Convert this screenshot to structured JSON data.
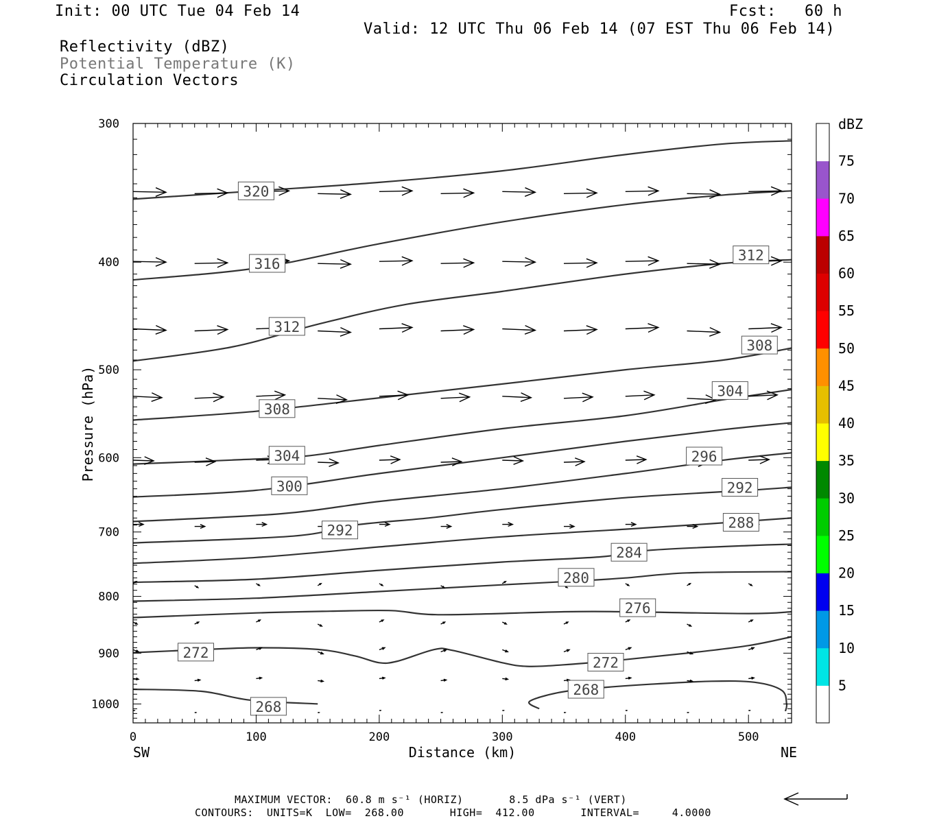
{
  "header": {
    "init": "Init: 00 UTC Tue 04 Feb 14",
    "fcst": "Fcst:   60 h",
    "valid": "Valid: 12 UTC Thu 06 Feb 14 (07 EST Thu 06 Feb 14)",
    "field_1": "Reflectivity (dBZ)",
    "field_2": "Potential Temperature (K)",
    "field_3": "Circulation Vectors"
  },
  "footer": {
    "max_vector": "MAXIMUM VECTOR:  60.8 m s⁻¹ (HORIZ)       8.5 dPa s⁻¹ (VERT)",
    "contours": "CONTOURS:  UNITS=K  LOW=  268.00       HIGH=  412.00       INTERVAL=     4.0000"
  },
  "chart_data": {
    "type": "cross-section",
    "xlabel": "Distance (km)",
    "ylabel": "Pressure (hPa)",
    "x_range": [
      0,
      535
    ],
    "y_range": [
      1040,
      300
    ],
    "y_log": true,
    "x_ticks": [
      0,
      100,
      200,
      300,
      400,
      500
    ],
    "y_ticks": [
      300,
      400,
      500,
      600,
      700,
      800,
      900,
      1000
    ],
    "x_endpoints": {
      "left": "SW",
      "right": "NE"
    },
    "colorbar": {
      "title": "dBZ",
      "levels": [
        5,
        10,
        15,
        20,
        25,
        30,
        35,
        40,
        45,
        50,
        55,
        60,
        65,
        70,
        75
      ],
      "colors": [
        "#00e5e5",
        "#0099e6",
        "#0000f0",
        "#00ff00",
        "#00cc00",
        "#008800",
        "#ffff00",
        "#e6bf00",
        "#ff9000",
        "#ff0000",
        "#dd0000",
        "#bb0000",
        "#ff00ff",
        "#9955cc",
        "#ffffff"
      ]
    },
    "contour_color": "#333333",
    "isentropes": [
      {
        "label": "268",
        "points": [
          [
            0,
            970
          ],
          [
            55,
            974
          ],
          [
            95,
            992
          ],
          [
            150,
            1000
          ]
        ]
      },
      {
        "label": "268",
        "points": [
          [
            330,
            1010
          ],
          [
            322,
            995
          ],
          [
            345,
            977
          ],
          [
            375,
            968
          ],
          [
            420,
            960
          ],
          [
            470,
            954
          ],
          [
            505,
            956
          ],
          [
            527,
            972
          ],
          [
            531,
            1000
          ],
          [
            530,
            1015
          ]
        ]
      },
      {
        "label": "272",
        "points": [
          [
            0,
            899
          ],
          [
            50,
            894
          ],
          [
            100,
            890
          ],
          [
            150,
            893
          ],
          [
            180,
            905
          ],
          [
            200,
            918
          ],
          [
            215,
            915
          ],
          [
            245,
            893
          ],
          [
            260,
            895
          ],
          [
            300,
            918
          ],
          [
            320,
            925
          ],
          [
            350,
            922
          ],
          [
            400,
            912
          ],
          [
            450,
            900
          ],
          [
            500,
            886
          ],
          [
            535,
            870
          ]
        ]
      },
      {
        "label": "276",
        "points": [
          [
            0,
            836
          ],
          [
            100,
            828
          ],
          [
            160,
            825
          ],
          [
            210,
            824
          ],
          [
            250,
            831
          ],
          [
            350,
            826
          ],
          [
            400,
            826
          ],
          [
            500,
            829
          ],
          [
            535,
            826
          ]
        ]
      },
      {
        "label": "280",
        "points": [
          [
            0,
            808
          ],
          [
            100,
            803
          ],
          [
            200,
            792
          ],
          [
            300,
            781
          ],
          [
            360,
            775
          ],
          [
            400,
            770
          ],
          [
            450,
            762
          ],
          [
            535,
            760
          ]
        ]
      },
      {
        "label": "284",
        "points": [
          [
            0,
            777
          ],
          [
            100,
            772
          ],
          [
            200,
            758
          ],
          [
            300,
            745
          ],
          [
            380,
            737
          ],
          [
            420,
            727
          ],
          [
            500,
            720
          ],
          [
            535,
            718
          ]
        ]
      },
      {
        "label": "288",
        "points": [
          [
            0,
            747
          ],
          [
            100,
            738
          ],
          [
            200,
            722
          ],
          [
            300,
            707
          ],
          [
            400,
            696
          ],
          [
            470,
            688
          ],
          [
            535,
            680
          ]
        ]
      },
      {
        "label": "292",
        "points": [
          [
            0,
            716
          ],
          [
            130,
            706
          ],
          [
            180,
            690
          ],
          [
            240,
            680
          ],
          [
            300,
            668
          ],
          [
            400,
            652
          ],
          [
            500,
            642
          ],
          [
            535,
            638
          ]
        ]
      },
      {
        "label": "296",
        "points": [
          [
            0,
            685
          ],
          [
            120,
            674
          ],
          [
            200,
            657
          ],
          [
            300,
            640
          ],
          [
            400,
            620
          ],
          [
            480,
            603
          ],
          [
            535,
            594
          ]
        ]
      },
      {
        "label": "300",
        "points": [
          [
            0,
            651
          ],
          [
            100,
            642
          ],
          [
            200,
            620
          ],
          [
            300,
            600
          ],
          [
            400,
            580
          ],
          [
            480,
            566
          ],
          [
            535,
            558
          ]
        ]
      },
      {
        "label": "304",
        "points": [
          [
            0,
            608
          ],
          [
            80,
            603
          ],
          [
            140,
            598
          ],
          [
            200,
            585
          ],
          [
            300,
            565
          ],
          [
            400,
            550
          ],
          [
            480,
            532
          ],
          [
            535,
            521
          ]
        ]
      },
      {
        "label": "308",
        "points": [
          [
            0,
            555
          ],
          [
            100,
            545
          ],
          [
            200,
            530
          ],
          [
            300,
            515
          ],
          [
            400,
            500
          ],
          [
            480,
            490
          ],
          [
            535,
            478
          ]
        ]
      },
      {
        "label": "312",
        "points": [
          [
            0,
            491
          ],
          [
            80,
            477
          ],
          [
            150,
            455
          ],
          [
            220,
            437
          ],
          [
            300,
            425
          ],
          [
            400,
            410
          ],
          [
            480,
            401
          ],
          [
            535,
            398
          ]
        ]
      },
      {
        "label": "316",
        "points": [
          [
            0,
            415
          ],
          [
            100,
            405
          ],
          [
            200,
            385
          ],
          [
            300,
            368
          ],
          [
            400,
            355
          ],
          [
            480,
            348
          ],
          [
            535,
            345
          ]
        ]
      },
      {
        "label": "320",
        "points": [
          [
            0,
            351
          ],
          [
            100,
            345
          ],
          [
            200,
            339
          ],
          [
            300,
            331
          ],
          [
            400,
            320
          ],
          [
            480,
            313
          ],
          [
            535,
            311
          ]
        ]
      }
    ],
    "contour_labels": [
      {
        "text": "268",
        "x": 110,
        "p": 1005
      },
      {
        "text": "268",
        "x": 368,
        "p": 970
      },
      {
        "text": "272",
        "x": 51,
        "p": 898
      },
      {
        "text": "272",
        "x": 384,
        "p": 917
      },
      {
        "text": "276",
        "x": 410,
        "p": 819
      },
      {
        "text": "280",
        "x": 360,
        "p": 769
      },
      {
        "text": "284",
        "x": 403,
        "p": 730
      },
      {
        "text": "288",
        "x": 494,
        "p": 686
      },
      {
        "text": "292",
        "x": 168,
        "p": 697
      },
      {
        "text": "292",
        "x": 493,
        "p": 638
      },
      {
        "text": "296",
        "x": 464,
        "p": 598
      },
      {
        "text": "300",
        "x": 127,
        "p": 636
      },
      {
        "text": "304",
        "x": 125,
        "p": 597
      },
      {
        "text": "304",
        "x": 485,
        "p": 522
      },
      {
        "text": "308",
        "x": 117,
        "p": 542
      },
      {
        "text": "308",
        "x": 509,
        "p": 475
      },
      {
        "text": "312",
        "x": 125,
        "p": 457
      },
      {
        "text": "312",
        "x": 502,
        "p": 394
      },
      {
        "text": "316",
        "x": 109,
        "p": 401
      },
      {
        "text": "320",
        "x": 100,
        "p": 345
      }
    ],
    "vector_levels": [
      {
        "p": 346,
        "dx": 48,
        "dy": -1
      },
      {
        "p": 400,
        "dx": 48,
        "dy": -1
      },
      {
        "p": 460,
        "dx": 48,
        "dy": -2
      },
      {
        "p": 529,
        "dx": 42,
        "dy": -2
      },
      {
        "p": 604,
        "dx": 30,
        "dy": -1
      },
      {
        "p": 690,
        "dx": 15,
        "dy": 0
      },
      {
        "p": 780,
        "dx": 5,
        "dy": 3
      },
      {
        "p": 845,
        "dx": 6,
        "dy": -3
      },
      {
        "p": 895,
        "dx": 8,
        "dy": -3
      },
      {
        "p": 950,
        "dx": 8,
        "dy": -1
      },
      {
        "p": 1015,
        "dx": 2,
        "dy": 0
      }
    ],
    "vector_x": [
      0,
      50,
      100,
      150,
      200,
      250,
      300,
      350,
      400,
      450,
      500
    ],
    "reference_vector": "60.8 m s⁻¹"
  }
}
